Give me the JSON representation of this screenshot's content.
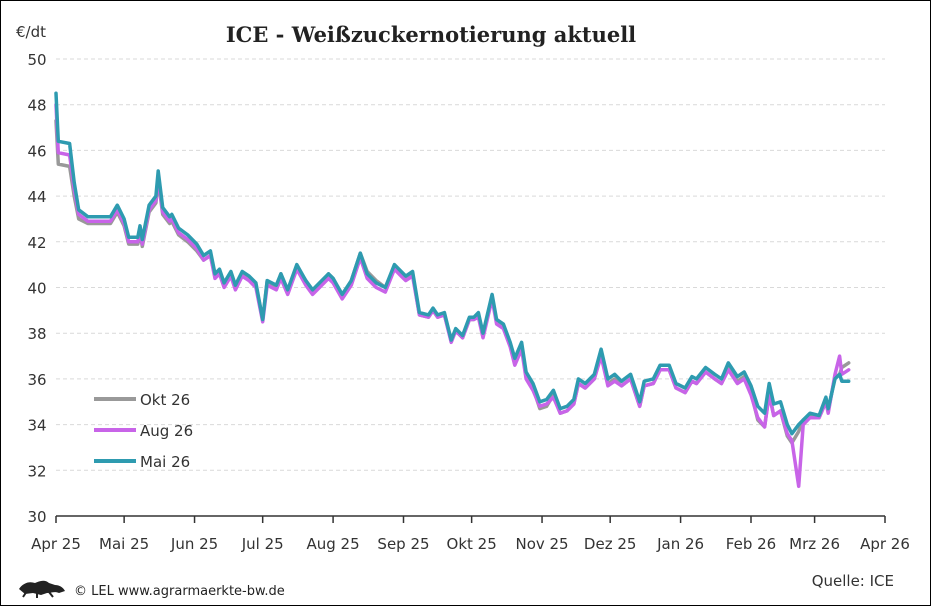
{
  "chart_data": {
    "type": "line",
    "title": "ICE - Weißzuckernotierung aktuell",
    "ylabel": "€/dt",
    "xlabel": "",
    "ylim": [
      30,
      50
    ],
    "yticks": [
      30,
      32,
      34,
      36,
      38,
      40,
      42,
      44,
      46,
      48,
      50
    ],
    "xlim": [
      "2025-04-01",
      "2026-04-01"
    ],
    "xticks": [
      {
        "date": "2025-04-01",
        "label": "Apr 25"
      },
      {
        "date": "2025-05-01",
        "label": "Mai 25"
      },
      {
        "date": "2025-06-01",
        "label": "Jun 25"
      },
      {
        "date": "2025-07-01",
        "label": "Jul 25"
      },
      {
        "date": "2025-08-01",
        "label": "Aug 25"
      },
      {
        "date": "2025-09-01",
        "label": "Sep 25"
      },
      {
        "date": "2025-10-01",
        "label": "Okt 25"
      },
      {
        "date": "2025-11-01",
        "label": "Nov 25"
      },
      {
        "date": "2025-12-01",
        "label": "Dez 25"
      },
      {
        "date": "2026-01-01",
        "label": "Jan 26"
      },
      {
        "date": "2026-02-01",
        "label": "Feb 26"
      },
      {
        "date": "2026-03-01",
        "label": "Mrz 26"
      },
      {
        "date": "2026-04-01",
        "label": "Apr 26"
      }
    ],
    "grid": "horizontal dashed",
    "legend_placement": "bottom-left",
    "x": [
      "2025-04-01",
      "2025-04-02",
      "2025-04-07",
      "2025-04-09",
      "2025-04-11",
      "2025-04-15",
      "2025-04-25",
      "2025-04-28",
      "2025-05-01",
      "2025-05-03",
      "2025-05-07",
      "2025-05-08",
      "2025-05-09",
      "2025-05-12",
      "2025-05-15",
      "2025-05-16",
      "2025-05-18",
      "2025-05-21",
      "2025-05-22",
      "2025-05-25",
      "2025-05-29",
      "2025-06-02",
      "2025-06-05",
      "2025-06-08",
      "2025-06-10",
      "2025-06-12",
      "2025-06-14",
      "2025-06-17",
      "2025-06-19",
      "2025-06-22",
      "2025-06-25",
      "2025-06-28",
      "2025-07-01",
      "2025-07-03",
      "2025-07-07",
      "2025-07-09",
      "2025-07-12",
      "2025-07-16",
      "2025-07-20",
      "2025-07-23",
      "2025-07-26",
      "2025-07-30",
      "2025-08-01",
      "2025-08-05",
      "2025-08-09",
      "2025-08-13",
      "2025-08-16",
      "2025-08-20",
      "2025-08-24",
      "2025-08-28",
      "2025-08-31",
      "2025-09-02",
      "2025-09-05",
      "2025-09-08",
      "2025-09-12",
      "2025-09-14",
      "2025-09-16",
      "2025-09-19",
      "2025-09-22",
      "2025-09-24",
      "2025-09-27",
      "2025-09-30",
      "2025-10-02",
      "2025-10-04",
      "2025-10-06",
      "2025-10-10",
      "2025-10-12",
      "2025-10-15",
      "2025-10-18",
      "2025-10-20",
      "2025-10-23",
      "2025-10-25",
      "2025-10-28",
      "2025-10-31",
      "2025-11-03",
      "2025-11-06",
      "2025-11-09",
      "2025-11-12",
      "2025-11-15",
      "2025-11-17",
      "2025-11-20",
      "2025-11-24",
      "2025-11-27",
      "2025-11-30",
      "2025-12-03",
      "2025-12-06",
      "2025-12-10",
      "2025-12-14",
      "2025-12-16",
      "2025-12-20",
      "2025-12-23",
      "2025-12-27",
      "2025-12-30",
      "2026-01-03",
      "2026-01-06",
      "2026-01-08",
      "2026-01-12",
      "2026-01-16",
      "2026-01-19",
      "2026-01-22",
      "2026-01-26",
      "2026-01-29",
      "2026-02-01",
      "2026-02-04",
      "2026-02-07",
      "2026-02-09",
      "2026-02-11",
      "2026-02-14",
      "2026-02-17",
      "2026-02-19",
      "2026-02-22",
      "2026-02-24",
      "2026-02-27",
      "2026-03-03",
      "2026-03-06",
      "2026-03-07",
      "2026-03-10",
      "2026-03-12",
      "2026-03-13",
      "2026-03-16"
    ],
    "series": [
      {
        "name": "Okt 26",
        "color": "#999999",
        "values": [
          47.3,
          45.4,
          45.3,
          44.0,
          43.0,
          42.8,
          42.8,
          43.3,
          42.7,
          41.9,
          41.9,
          42.4,
          41.8,
          43.3,
          43.7,
          44.7,
          43.2,
          42.8,
          42.9,
          42.3,
          42.0,
          41.6,
          41.2,
          41.4,
          40.5,
          40.7,
          40.1,
          40.6,
          40.0,
          40.6,
          40.4,
          40.1,
          38.6,
          40.3,
          40.0,
          40.6,
          39.8,
          40.9,
          40.3,
          39.8,
          40.1,
          40.6,
          40.4,
          39.6,
          40.3,
          41.5,
          40.7,
          40.3,
          40.0,
          40.9,
          40.6,
          40.4,
          40.6,
          38.8,
          38.7,
          39.0,
          38.7,
          38.8,
          37.7,
          38.1,
          37.8,
          38.6,
          38.6,
          38.8,
          37.9,
          39.6,
          38.5,
          38.3,
          37.5,
          36.7,
          37.4,
          36.1,
          35.6,
          34.7,
          34.8,
          35.3,
          34.5,
          34.6,
          34.9,
          35.8,
          35.6,
          36.0,
          37.1,
          35.8,
          36.0,
          35.7,
          36.0,
          34.8,
          35.7,
          35.8,
          36.4,
          36.4,
          35.6,
          35.4,
          35.9,
          35.8,
          36.3,
          36.0,
          35.8,
          36.5,
          35.9,
          36.1,
          35.4,
          34.2,
          33.9,
          35.4,
          34.4,
          34.6,
          33.5,
          33.2,
          33.7,
          34.2,
          34.4,
          34.3,
          35.0,
          34.6,
          36.1,
          36.2,
          36.5,
          36.7
        ]
      },
      {
        "name": "Aug 26",
        "color": "#c864e8",
        "values": [
          48.0,
          45.9,
          45.8,
          44.3,
          43.2,
          42.9,
          42.9,
          43.4,
          42.8,
          42.0,
          42.0,
          42.5,
          41.9,
          43.4,
          43.8,
          44.8,
          43.3,
          42.9,
          43.0,
          42.4,
          42.1,
          41.7,
          41.2,
          41.4,
          40.4,
          40.6,
          40.0,
          40.5,
          39.9,
          40.5,
          40.3,
          40.0,
          38.5,
          40.1,
          39.9,
          40.4,
          39.7,
          40.8,
          40.1,
          39.7,
          40.0,
          40.4,
          40.2,
          39.5,
          40.1,
          41.3,
          40.4,
          40.0,
          39.8,
          40.8,
          40.5,
          40.3,
          40.5,
          38.8,
          38.7,
          39.0,
          38.7,
          38.8,
          37.6,
          38.1,
          37.8,
          38.6,
          38.6,
          38.7,
          37.8,
          39.5,
          38.4,
          38.2,
          37.4,
          36.6,
          37.3,
          36.0,
          35.5,
          34.8,
          34.9,
          35.2,
          34.5,
          34.6,
          34.9,
          35.8,
          35.6,
          36.0,
          37.0,
          35.7,
          35.9,
          35.7,
          36.0,
          34.8,
          35.7,
          35.8,
          36.4,
          36.4,
          35.6,
          35.4,
          35.9,
          35.8,
          36.3,
          36.0,
          35.8,
          36.4,
          35.8,
          36.0,
          35.3,
          34.3,
          33.9,
          35.3,
          34.4,
          34.6,
          33.6,
          33.3,
          31.3,
          34.0,
          34.3,
          34.3,
          35.0,
          34.5,
          36.2,
          37.0,
          36.2,
          36.4
        ]
      },
      {
        "name": "Mai 26",
        "color": "#2e9bb0",
        "values": [
          48.5,
          46.4,
          46.3,
          44.6,
          43.4,
          43.1,
          43.1,
          43.6,
          43.0,
          42.2,
          42.2,
          42.7,
          42.1,
          43.6,
          44.0,
          45.1,
          43.5,
          43.1,
          43.2,
          42.6,
          42.3,
          41.9,
          41.4,
          41.6,
          40.6,
          40.8,
          40.2,
          40.7,
          40.1,
          40.7,
          40.5,
          40.2,
          38.6,
          40.3,
          40.1,
          40.6,
          39.9,
          41.0,
          40.3,
          39.9,
          40.2,
          40.6,
          40.4,
          39.7,
          40.3,
          41.5,
          40.6,
          40.2,
          40.0,
          41.0,
          40.7,
          40.5,
          40.7,
          38.9,
          38.8,
          39.1,
          38.8,
          38.9,
          37.7,
          38.2,
          37.9,
          38.7,
          38.7,
          38.9,
          38.0,
          39.7,
          38.6,
          38.4,
          37.6,
          36.9,
          37.6,
          36.3,
          35.8,
          35.0,
          35.1,
          35.5,
          34.7,
          34.8,
          35.1,
          36.0,
          35.8,
          36.2,
          37.3,
          36.0,
          36.2,
          35.9,
          36.2,
          35.0,
          35.9,
          36.0,
          36.6,
          36.6,
          35.8,
          35.6,
          36.1,
          36.0,
          36.5,
          36.2,
          36.0,
          36.7,
          36.1,
          36.3,
          35.7,
          34.8,
          34.5,
          35.8,
          34.9,
          35.0,
          34.0,
          33.6,
          34.0,
          34.2,
          34.5,
          34.4,
          35.2,
          34.7,
          36.0,
          36.2,
          35.9,
          35.9
        ]
      }
    ]
  },
  "footer": {
    "credit": "© LEL www.agrarmaerkte-bw.de",
    "logo": "Baden-Württemberg lion logo",
    "source": "Quelle: ICE"
  },
  "colors": {
    "grid": "#d9d9d9",
    "axis": "#333333"
  }
}
